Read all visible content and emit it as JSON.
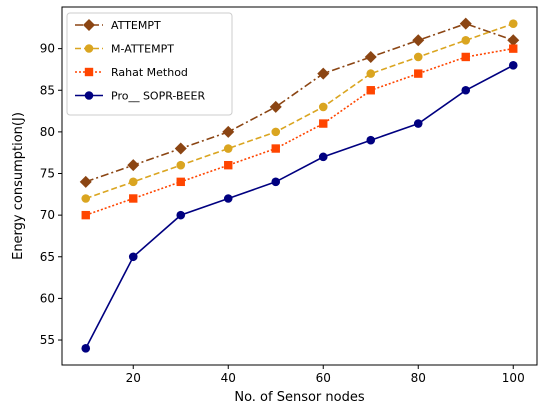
{
  "chart_data": {
    "type": "line",
    "title": "",
    "xlabel": "No. of Sensor nodes",
    "ylabel": "Energy consumption(J)",
    "xlim": [
      5,
      105
    ],
    "ylim": [
      52,
      95
    ],
    "xticks": [
      20,
      40,
      60,
      80,
      100
    ],
    "yticks": [
      55,
      60,
      65,
      70,
      75,
      80,
      85,
      90
    ],
    "grid": false,
    "legend_position": "top-left",
    "x": [
      10,
      20,
      30,
      40,
      50,
      60,
      70,
      80,
      90,
      100
    ],
    "series": [
      {
        "name": "ATTEMPT",
        "values": [
          74,
          76,
          78,
          80,
          83,
          87,
          89,
          91,
          93,
          91
        ],
        "color": "#8B4513",
        "line_style": "dashdot",
        "marker": "diamond"
      },
      {
        "name": "M-ATTEMPT",
        "values": [
          72,
          74,
          76,
          78,
          80,
          83,
          87,
          89,
          91,
          93
        ],
        "color": "#DAA520",
        "line_style": "dashed",
        "marker": "circle"
      },
      {
        "name": "Rahat  Method",
        "values": [
          70,
          72,
          74,
          76,
          78,
          81,
          85,
          87,
          89,
          90
        ],
        "color": "#FF4500",
        "line_style": "dotted",
        "marker": "square"
      },
      {
        "name": "Pro__ SOPR-BEER",
        "values": [
          54,
          65,
          70,
          72,
          74,
          77,
          79,
          81,
          85,
          88
        ],
        "color": "#000080",
        "line_style": "solid",
        "marker": "circle"
      }
    ]
  }
}
